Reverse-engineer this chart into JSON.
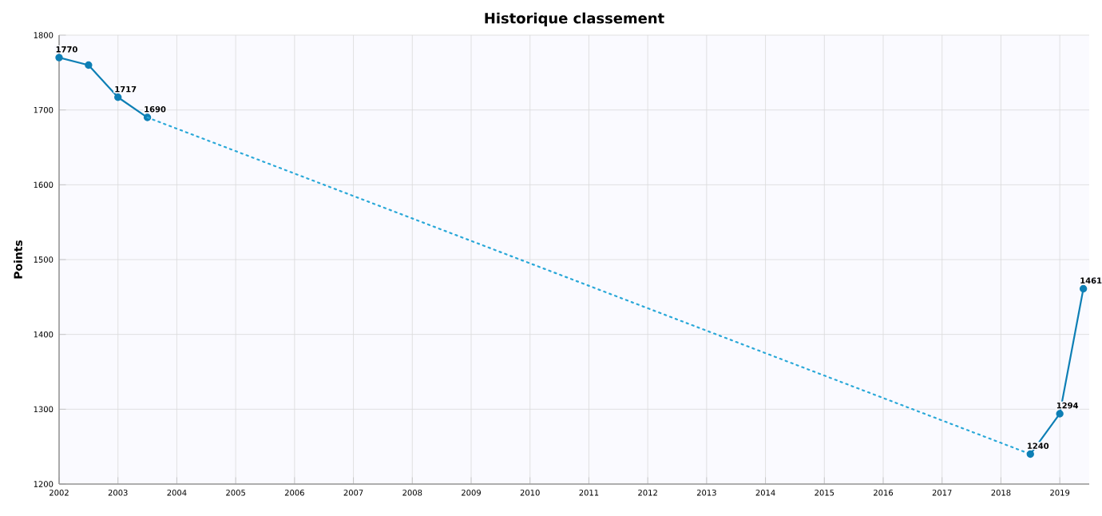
{
  "chart_data": {
    "type": "line",
    "title": "Historique classement",
    "ylabel": "Points",
    "xlim": [
      2002,
      2019.5
    ],
    "xticks": [
      2002,
      2003,
      2004,
      2005,
      2006,
      2007,
      2008,
      2009,
      2010,
      2011,
      2012,
      2013,
      2014,
      2015,
      2016,
      2017,
      2018,
      2019
    ],
    "ylim": [
      1200,
      1800
    ],
    "yticks": [
      1200,
      1300,
      1400,
      1500,
      1600,
      1700,
      1800
    ],
    "grid": true,
    "series": [
      {
        "color": "#0e7fb5",
        "x": [
          2002,
          2002.5,
          2003,
          2003.5
        ],
        "values": [
          1770,
          1760,
          1717,
          1690
        ],
        "value_labels": [
          "1770",
          null,
          "1717",
          "1690"
        ],
        "marker": "circle",
        "line_style": "solid"
      },
      {
        "color": "#2aa8d8",
        "x": [
          2003.5,
          2018.5
        ],
        "values": [
          1690,
          1240
        ],
        "marker": "none",
        "line_style": "dotted"
      },
      {
        "color": "#0e7fb5",
        "x": [
          2018.5,
          2019,
          2019.4
        ],
        "values": [
          1240,
          1294,
          1461
        ],
        "value_labels": [
          "1240",
          "1294",
          "1461"
        ],
        "marker": "circle",
        "line_style": "solid"
      }
    ]
  }
}
